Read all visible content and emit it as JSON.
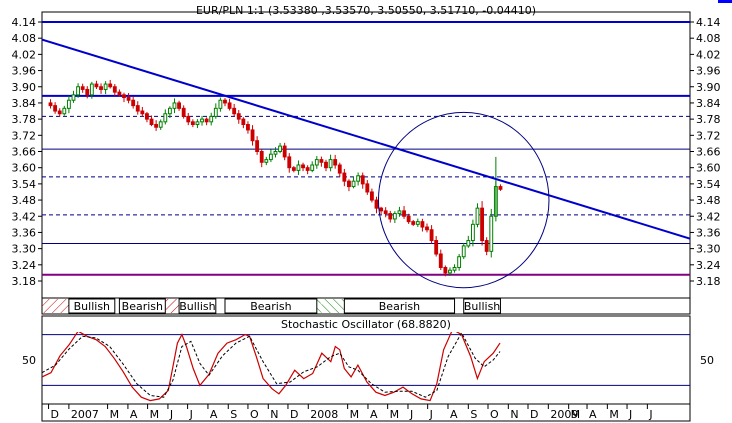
{
  "main_title": "EUR/PLN 1:1 (3.53380 ,3.53570, 3.50550, 3.51710, -0.04410)",
  "oscillator_title": "Stochastic Oscillator (68.8820)",
  "colors": {
    "background": "#ffffff",
    "frame": "#000000",
    "grid": "#000080",
    "trendline": "#0000cc",
    "resistance": "#0000cc",
    "support": "#800080",
    "candle_up": "#008000",
    "candle_down": "#cc0000",
    "ellipse": "#000080",
    "stoch_k": "#cc0000",
    "stoch_d": "#000000",
    "marker": "#0000ff"
  },
  "chart_data": [
    {
      "type": "candlestick",
      "title": "EUR/PLN 1:1 (3.53380 ,3.53570, 3.50550, 3.51710, -0.04410)",
      "y_ticks": [
        "4.14",
        "4.08",
        "4.02",
        "3.96",
        "3.90",
        "3.84",
        "3.78",
        "3.72",
        "3.66",
        "3.60",
        "3.54",
        "3.48",
        "3.42",
        "3.36",
        "3.30",
        "3.24",
        "3.18"
      ],
      "ylim": [
        3.135,
        4.155
      ],
      "x_ticks": [
        "D",
        "2007",
        "M",
        "A",
        "M",
        "J",
        "J",
        "A",
        "S",
        "O",
        "N",
        "D",
        "2008",
        "M",
        "A",
        "M",
        "J",
        "J",
        "A",
        "S",
        "O",
        "N",
        "D",
        "2009",
        "M",
        "A",
        "M",
        "J",
        "J"
      ],
      "xlim": [
        "2006-11-21",
        "2009-08-05"
      ],
      "horizontal_lines": [
        {
          "value": 4.14,
          "style": "solid-thick",
          "color": "resistance"
        },
        {
          "value": 3.866,
          "style": "solid-thick",
          "color": "resistance"
        },
        {
          "value": 3.79,
          "style": "dashed"
        },
        {
          "value": 3.669,
          "style": "solid"
        },
        {
          "value": 3.566,
          "style": "dashed"
        },
        {
          "value": 3.425,
          "style": "dashed"
        },
        {
          "value": 3.319,
          "style": "solid"
        },
        {
          "value": 3.203,
          "style": "solid-thick",
          "color": "support"
        }
      ],
      "trendline": {
        "start": [
          "2006-11-21",
          4.075
        ],
        "end": [
          "2009-08-05",
          3.337
        ]
      },
      "ellipse": {
        "center": [
          "2008-08-25",
          3.48
        ],
        "radius_days": 130,
        "radius_price": 0.325
      },
      "weekly_closes": [
        [
          "2006-11-27",
          3.84
        ],
        [
          "2006-12-04",
          3.83
        ],
        [
          "2006-12-11",
          3.81
        ],
        [
          "2006-12-18",
          3.8
        ],
        [
          "2006-12-25",
          3.82
        ],
        [
          "2007-01-01",
          3.85
        ],
        [
          "2007-01-08",
          3.87
        ],
        [
          "2007-01-15",
          3.9
        ],
        [
          "2007-01-22",
          3.89
        ],
        [
          "2007-01-29",
          3.87
        ],
        [
          "2007-02-05",
          3.91
        ],
        [
          "2007-02-12",
          3.9
        ],
        [
          "2007-02-19",
          3.89
        ],
        [
          "2007-02-26",
          3.91
        ],
        [
          "2007-03-05",
          3.9
        ],
        [
          "2007-03-12",
          3.88
        ],
        [
          "2007-03-19",
          3.87
        ],
        [
          "2007-03-26",
          3.86
        ],
        [
          "2007-04-02",
          3.85
        ],
        [
          "2007-04-09",
          3.83
        ],
        [
          "2007-04-16",
          3.81
        ],
        [
          "2007-04-23",
          3.8
        ],
        [
          "2007-04-30",
          3.78
        ],
        [
          "2007-05-07",
          3.76
        ],
        [
          "2007-05-14",
          3.75
        ],
        [
          "2007-05-21",
          3.77
        ],
        [
          "2007-05-28",
          3.8
        ],
        [
          "2007-06-04",
          3.82
        ],
        [
          "2007-06-11",
          3.84
        ],
        [
          "2007-06-18",
          3.82
        ],
        [
          "2007-06-25",
          3.79
        ],
        [
          "2007-07-02",
          3.77
        ],
        [
          "2007-07-09",
          3.76
        ],
        [
          "2007-07-16",
          3.77
        ],
        [
          "2007-07-23",
          3.78
        ],
        [
          "2007-07-30",
          3.77
        ],
        [
          "2007-08-06",
          3.79
        ],
        [
          "2007-08-13",
          3.82
        ],
        [
          "2007-08-20",
          3.85
        ],
        [
          "2007-08-27",
          3.84
        ],
        [
          "2007-09-03",
          3.82
        ],
        [
          "2007-09-10",
          3.8
        ],
        [
          "2007-09-17",
          3.78
        ],
        [
          "2007-09-24",
          3.76
        ],
        [
          "2007-10-01",
          3.74
        ],
        [
          "2007-10-08",
          3.7
        ],
        [
          "2007-10-15",
          3.66
        ],
        [
          "2007-10-22",
          3.62
        ],
        [
          "2007-10-29",
          3.63
        ],
        [
          "2007-11-05",
          3.65
        ],
        [
          "2007-11-12",
          3.66
        ],
        [
          "2007-11-19",
          3.68
        ],
        [
          "2007-11-26",
          3.64
        ],
        [
          "2007-12-03",
          3.6
        ],
        [
          "2007-12-10",
          3.59
        ],
        [
          "2007-12-17",
          3.61
        ],
        [
          "2007-12-24",
          3.6
        ],
        [
          "2007-12-31",
          3.59
        ],
        [
          "2008-01-07",
          3.61
        ],
        [
          "2008-01-14",
          3.63
        ],
        [
          "2008-01-21",
          3.62
        ],
        [
          "2008-01-28",
          3.6
        ],
        [
          "2008-02-04",
          3.63
        ],
        [
          "2008-02-11",
          3.61
        ],
        [
          "2008-02-18",
          3.58
        ],
        [
          "2008-02-25",
          3.55
        ],
        [
          "2008-03-03",
          3.53
        ],
        [
          "2008-03-10",
          3.55
        ],
        [
          "2008-03-17",
          3.57
        ],
        [
          "2008-03-24",
          3.54
        ],
        [
          "2008-03-31",
          3.51
        ],
        [
          "2008-04-07",
          3.48
        ],
        [
          "2008-04-14",
          3.45
        ],
        [
          "2008-04-21",
          3.44
        ],
        [
          "2008-04-28",
          3.43
        ],
        [
          "2008-05-05",
          3.41
        ],
        [
          "2008-05-12",
          3.43
        ],
        [
          "2008-05-19",
          3.44
        ],
        [
          "2008-05-26",
          3.42
        ],
        [
          "2008-06-02",
          3.4
        ],
        [
          "2008-06-09",
          3.39
        ],
        [
          "2008-06-16",
          3.4
        ],
        [
          "2008-06-23",
          3.38
        ],
        [
          "2008-06-30",
          3.37
        ],
        [
          "2008-07-07",
          3.33
        ],
        [
          "2008-07-14",
          3.28
        ],
        [
          "2008-07-21",
          3.23
        ],
        [
          "2008-07-28",
          3.21
        ],
        [
          "2008-08-04",
          3.22
        ],
        [
          "2008-08-11",
          3.23
        ],
        [
          "2008-08-18",
          3.27
        ],
        [
          "2008-08-25",
          3.31
        ],
        [
          "2008-09-01",
          3.33
        ],
        [
          "2008-09-08",
          3.39
        ],
        [
          "2008-09-15",
          3.45
        ],
        [
          "2008-09-22",
          3.33
        ],
        [
          "2008-09-29",
          3.29
        ],
        [
          "2008-10-06",
          3.42
        ],
        [
          "2008-10-13",
          3.53
        ],
        [
          "2008-10-20",
          3.52
        ]
      ]
    },
    {
      "type": "line",
      "title": "Stochastic Oscillator (68.8820)",
      "y_ticks": [
        50
      ],
      "ylim": [
        -2,
        102
      ],
      "reference_lines": [
        80,
        20
      ],
      "series_k": [
        [
          0,
          30
        ],
        [
          4,
          35
        ],
        [
          8,
          55
        ],
        [
          12,
          68
        ],
        [
          16,
          84
        ],
        [
          20,
          78
        ],
        [
          24,
          74
        ],
        [
          28,
          66
        ],
        [
          32,
          52
        ],
        [
          36,
          36
        ],
        [
          40,
          18
        ],
        [
          44,
          6
        ],
        [
          48,
          2
        ],
        [
          52,
          4
        ],
        [
          56,
          14
        ],
        [
          58,
          42
        ],
        [
          60,
          70
        ],
        [
          62,
          80
        ],
        [
          64,
          66
        ],
        [
          67,
          40
        ],
        [
          70,
          20
        ],
        [
          74,
          33
        ],
        [
          78,
          58
        ],
        [
          82,
          70
        ],
        [
          86,
          74
        ],
        [
          90,
          80
        ],
        [
          92,
          78
        ],
        [
          95,
          54
        ],
        [
          98,
          28
        ],
        [
          102,
          16
        ],
        [
          105,
          10
        ],
        [
          108,
          20
        ],
        [
          112,
          38
        ],
        [
          116,
          28
        ],
        [
          120,
          34
        ],
        [
          124,
          58
        ],
        [
          128,
          48
        ],
        [
          130,
          66
        ],
        [
          132,
          62
        ],
        [
          134,
          40
        ],
        [
          137,
          30
        ],
        [
          140,
          44
        ],
        [
          144,
          24
        ],
        [
          148,
          12
        ],
        [
          152,
          8
        ],
        [
          156,
          12
        ],
        [
          160,
          18
        ],
        [
          164,
          10
        ],
        [
          168,
          4
        ],
        [
          172,
          2
        ],
        [
          175,
          22
        ],
        [
          178,
          62
        ],
        [
          182,
          86
        ],
        [
          186,
          80
        ],
        [
          190,
          54
        ],
        [
          193,
          28
        ],
        [
          196,
          48
        ],
        [
          200,
          58
        ],
        [
          203,
          70
        ]
      ],
      "series_d": [
        [
          0,
          35
        ],
        [
          6,
          44
        ],
        [
          12,
          63
        ],
        [
          18,
          78
        ],
        [
          24,
          76
        ],
        [
          30,
          66
        ],
        [
          36,
          45
        ],
        [
          42,
          22
        ],
        [
          48,
          8
        ],
        [
          54,
          6
        ],
        [
          58,
          26
        ],
        [
          62,
          66
        ],
        [
          66,
          72
        ],
        [
          70,
          46
        ],
        [
          74,
          32
        ],
        [
          80,
          55
        ],
        [
          86,
          70
        ],
        [
          92,
          78
        ],
        [
          98,
          48
        ],
        [
          104,
          22
        ],
        [
          110,
          24
        ],
        [
          116,
          36
        ],
        [
          122,
          42
        ],
        [
          128,
          54
        ],
        [
          132,
          58
        ],
        [
          136,
          42
        ],
        [
          140,
          38
        ],
        [
          146,
          22
        ],
        [
          152,
          12
        ],
        [
          158,
          13
        ],
        [
          164,
          13
        ],
        [
          170,
          6
        ],
        [
          175,
          14
        ],
        [
          180,
          54
        ],
        [
          186,
          82
        ],
        [
          192,
          52
        ],
        [
          196,
          42
        ],
        [
          200,
          50
        ],
        [
          203,
          60
        ]
      ]
    }
  ],
  "annotations": [
    {
      "label": "Bullish",
      "from": "2007-01-01",
      "to": "2007-03-12",
      "hatched": "2006-11-21"
    },
    {
      "label": "Bearish",
      "from": "2007-03-19",
      "to": "2007-05-28",
      "hatched": null
    },
    {
      "label": "Bullish",
      "from": "2007-06-18",
      "to": "2007-08-13",
      "hatched": "2007-05-28"
    },
    {
      "label": "Bearish",
      "from": "2007-08-27",
      "to": "2008-01-14",
      "hatched": "2008-01-14"
    },
    {
      "label": "Bearish",
      "from": "2008-02-25",
      "to": "2008-08-11",
      "hatched": "2008-01-21"
    },
    {
      "label": "Bullish",
      "from": "2008-08-25",
      "to": "2008-10-20",
      "hatched": null
    }
  ]
}
